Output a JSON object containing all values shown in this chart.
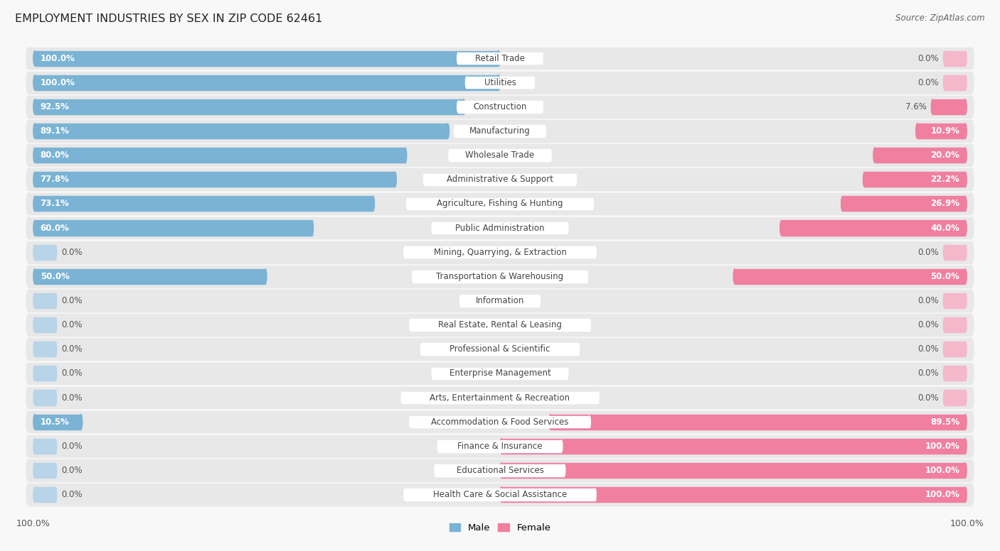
{
  "title": "EMPLOYMENT INDUSTRIES BY SEX IN ZIP CODE 62461",
  "source": "Source: ZipAtlas.com",
  "categories": [
    "Retail Trade",
    "Utilities",
    "Construction",
    "Manufacturing",
    "Wholesale Trade",
    "Administrative & Support",
    "Agriculture, Fishing & Hunting",
    "Public Administration",
    "Mining, Quarrying, & Extraction",
    "Transportation & Warehousing",
    "Information",
    "Real Estate, Rental & Leasing",
    "Professional & Scientific",
    "Enterprise Management",
    "Arts, Entertainment & Recreation",
    "Accommodation & Food Services",
    "Finance & Insurance",
    "Educational Services",
    "Health Care & Social Assistance"
  ],
  "male_pct": [
    100.0,
    100.0,
    92.5,
    89.1,
    80.0,
    77.8,
    73.1,
    60.0,
    0.0,
    50.0,
    0.0,
    0.0,
    0.0,
    0.0,
    0.0,
    10.5,
    0.0,
    0.0,
    0.0
  ],
  "female_pct": [
    0.0,
    0.0,
    7.6,
    10.9,
    20.0,
    22.2,
    26.9,
    40.0,
    0.0,
    50.0,
    0.0,
    0.0,
    0.0,
    0.0,
    0.0,
    89.5,
    100.0,
    100.0,
    100.0
  ],
  "male_color": "#7ab3d4",
  "female_color": "#f07fa0",
  "male_stub_color": "#b8d4e8",
  "female_stub_color": "#f5b8ca",
  "row_bg_color": "#ebebeb",
  "row_container_color": "#e0e0e0",
  "white": "#ffffff",
  "title_fontsize": 11.5,
  "source_fontsize": 8.5,
  "bar_label_fontsize": 8.5,
  "cat_label_fontsize": 8.5
}
